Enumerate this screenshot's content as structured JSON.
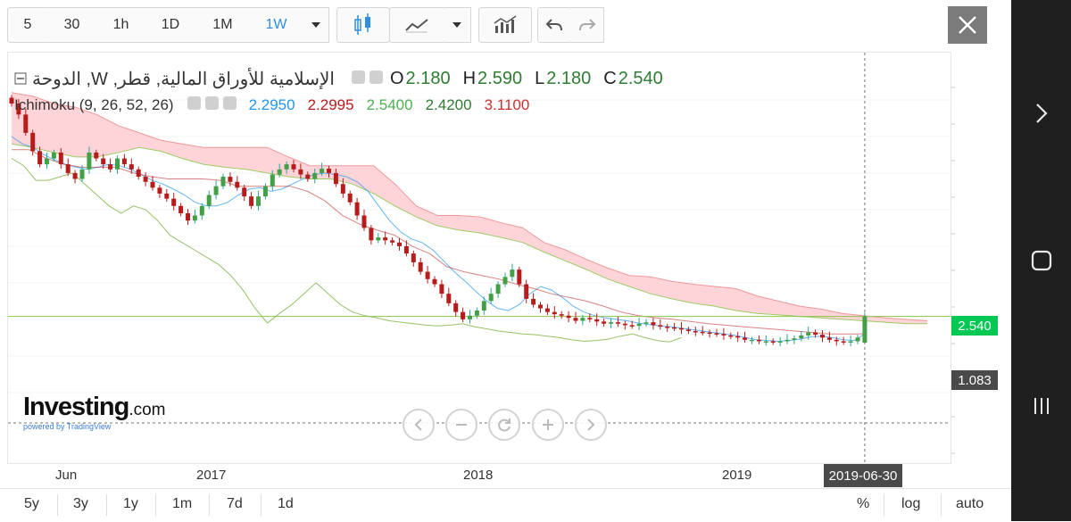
{
  "toolbar": {
    "intervals": [
      "5",
      "30",
      "1h",
      "1D",
      "1M",
      "1W"
    ],
    "active_interval": "1W",
    "icons": [
      "candlestick-icon",
      "line-chart-icon",
      "indicators-icon",
      "undo-icon",
      "redo-icon",
      "close-icon"
    ]
  },
  "legend": {
    "symbol": "الإسلامية للأوراق المالية, قطر, W, الدوحة",
    "ohlc": {
      "o_label": "O",
      "o": "2.180",
      "h_label": "H",
      "h": "2.590",
      "l_label": "L",
      "l": "2.180",
      "c_label": "C",
      "c": "2.540"
    },
    "ichimoku": {
      "label": "Ichimoku (9, 26, 52, 26)",
      "values": [
        "2.2950",
        "2.2995",
        "2.5400",
        "2.4200",
        "3.1100"
      ],
      "colors": [
        "#2196f3",
        "#b71c1c",
        "#4caf50",
        "#2e7d32",
        "#d32f2f"
      ]
    }
  },
  "price_labels": {
    "last": "2.540",
    "last_color": "#00c853",
    "crosshair": "1.083",
    "crosshair_color": "#4a4a4a"
  },
  "x_axis": {
    "labels": [
      "Jun",
      "2017",
      "2018",
      "2019"
    ],
    "crosshair_date": "2019-06-30"
  },
  "bottom_bar": {
    "ranges": [
      "5y",
      "3y",
      "1y",
      "1m",
      "7d",
      "1d"
    ],
    "options": [
      "%",
      "log",
      "auto"
    ]
  },
  "branding": {
    "logo": "Investing",
    "logo_suffix": ".com",
    "powered_by": "powered by TradingView"
  },
  "chart_data": {
    "type": "candlestick",
    "interval": "1W",
    "ylim": [
      0.9,
      6.0
    ],
    "x_range": [
      "2016-03-27",
      "2019-08-18"
    ],
    "colors": {
      "up": "#26a69a",
      "down": "#b71c1c",
      "tenkan": "#2196f3",
      "kijun": "#b71c1c",
      "chikou": "#7cb342",
      "cloud": "#ffcdd2"
    },
    "last_close": 2.54,
    "crosshair_price": 1.083,
    "ohlc_last": {
      "date": "2019-06-30",
      "open": 2.18,
      "high": 2.59,
      "low": 2.18,
      "close": 2.54
    },
    "ichimoku": {
      "tenkan": 2.295,
      "kijun": 2.2995,
      "chikou": 2.54,
      "senkou_a": 2.42,
      "senkou_b": 3.11
    },
    "closes": [
      5.45,
      5.3,
      5.05,
      4.8,
      4.62,
      4.7,
      4.78,
      4.62,
      4.5,
      4.42,
      4.55,
      4.78,
      4.7,
      4.62,
      4.55,
      4.7,
      4.62,
      4.55,
      4.45,
      4.38,
      4.3,
      4.22,
      4.15,
      4.05,
      3.95,
      3.85,
      3.92,
      4.05,
      4.2,
      4.32,
      4.45,
      4.38,
      4.3,
      4.18,
      4.05,
      4.18,
      4.32,
      4.48,
      4.55,
      4.62,
      4.55,
      4.48,
      4.42,
      4.5,
      4.56,
      4.5,
      4.35,
      4.22,
      4.1,
      3.92,
      3.75,
      3.58,
      3.62,
      3.58,
      3.55,
      3.5,
      3.4,
      3.28,
      3.15,
      3.05,
      2.98,
      2.85,
      2.72,
      2.6,
      2.5,
      2.55,
      2.62,
      2.75,
      2.85,
      2.98,
      3.08,
      3.18,
      2.98,
      2.78,
      2.7,
      2.65,
      2.6,
      2.57,
      2.55,
      2.52,
      2.48,
      2.52,
      2.5,
      2.47,
      2.44,
      2.46,
      2.44,
      2.42,
      2.41,
      2.44,
      2.46,
      2.42,
      2.4,
      2.39,
      2.38,
      2.36,
      2.34,
      2.33,
      2.32,
      2.31,
      2.3,
      2.28,
      2.27,
      2.25,
      2.22,
      2.22,
      2.2,
      2.2,
      2.19,
      2.2,
      2.22,
      2.24,
      2.28,
      2.32,
      2.29,
      2.25,
      2.22,
      2.2,
      2.19,
      2.2,
      2.25,
      2.54
    ],
    "tenkan": [
      5.0,
      4.9,
      4.85,
      4.75,
      4.68,
      4.62,
      4.58,
      4.55,
      4.58,
      4.62,
      4.6,
      4.55,
      4.48,
      4.4,
      4.35,
      4.28,
      4.2,
      4.1,
      4.05,
      4.05,
      4.1,
      4.2,
      4.28,
      4.3,
      4.25,
      4.28,
      4.35,
      4.42,
      4.48,
      4.5,
      4.48,
      4.45,
      4.38,
      4.25,
      4.05,
      3.85,
      3.7,
      3.6,
      3.55,
      3.45,
      3.3,
      3.15,
      3.02,
      2.88,
      2.75,
      2.65,
      2.62,
      2.7,
      2.85,
      2.95,
      2.9,
      2.8,
      2.68,
      2.6,
      2.55,
      2.52,
      2.5,
      2.48,
      2.45,
      2.43,
      2.41,
      2.4,
      2.38,
      2.36,
      2.34,
      2.32,
      2.3,
      2.28,
      2.25,
      2.22,
      2.21,
      2.2,
      2.21,
      2.23,
      2.26,
      2.27,
      2.25,
      2.22,
      2.21,
      2.3
    ],
    "kijun": [
      4.82,
      4.82,
      4.7,
      4.62,
      4.58,
      4.58,
      4.58,
      4.5,
      4.45,
      4.42,
      4.42,
      4.42,
      4.4,
      4.32,
      4.32,
      4.32,
      4.32,
      4.25,
      4.12,
      3.92,
      3.8,
      3.72,
      3.65,
      3.5,
      3.4,
      3.22,
      3.15,
      3.1,
      3.05,
      2.98,
      2.92,
      2.85,
      2.8,
      2.75,
      2.68,
      2.6,
      2.55,
      2.52,
      2.5,
      2.47,
      2.44,
      2.42,
      2.4,
      2.38,
      2.36,
      2.34,
      2.32,
      2.3,
      2.3,
      2.3
    ],
    "chikou": [
      4.7,
      4.6,
      4.4,
      4.4,
      4.45,
      4.5,
      4.35,
      4.2,
      4.05,
      3.95,
      4.05,
      4.0,
      3.85,
      3.65,
      3.55,
      3.45,
      3.35,
      3.25,
      3.1,
      2.9,
      2.65,
      2.45,
      2.58,
      2.7,
      2.85,
      3.0,
      2.85,
      2.7,
      2.6,
      2.55,
      2.52,
      2.48,
      2.46,
      2.44,
      2.42,
      2.41,
      2.42,
      2.44,
      2.4,
      2.37,
      2.34,
      2.32,
      2.3,
      2.29,
      2.27,
      2.25,
      2.22,
      2.2,
      2.21,
      2.23,
      2.27,
      2.3,
      2.25,
      2.21,
      2.19,
      2.25
    ],
    "senkou_a": [
      4.9,
      4.85,
      4.78,
      4.72,
      4.72,
      4.78,
      4.85,
      4.8,
      4.7,
      4.62,
      4.58,
      4.55,
      4.5,
      4.45,
      4.42,
      4.42,
      4.35,
      4.22,
      4.05,
      3.9,
      3.78,
      3.72,
      3.68,
      3.62,
      3.55,
      3.42,
      3.3,
      3.18,
      3.05,
      2.95,
      2.85,
      2.78,
      2.72,
      2.68,
      2.62,
      2.58,
      2.56,
      2.54,
      2.52,
      2.5,
      2.48,
      2.46,
      2.44,
      2.44
    ],
    "senkou_b": [
      5.6,
      5.55,
      5.45,
      5.4,
      5.3,
      5.15,
      5.05,
      4.95,
      4.9,
      4.85,
      4.85,
      4.85,
      4.85,
      4.72,
      4.6,
      4.6,
      4.6,
      4.6,
      4.35,
      4.05,
      3.92,
      3.92,
      3.9,
      3.82,
      3.75,
      3.55,
      3.45,
      3.32,
      3.2,
      3.1,
      3.08,
      3.02,
      2.98,
      2.95,
      2.92,
      2.82,
      2.75,
      2.68,
      2.64,
      2.58,
      2.55,
      2.52,
      2.5,
      2.48
    ]
  }
}
